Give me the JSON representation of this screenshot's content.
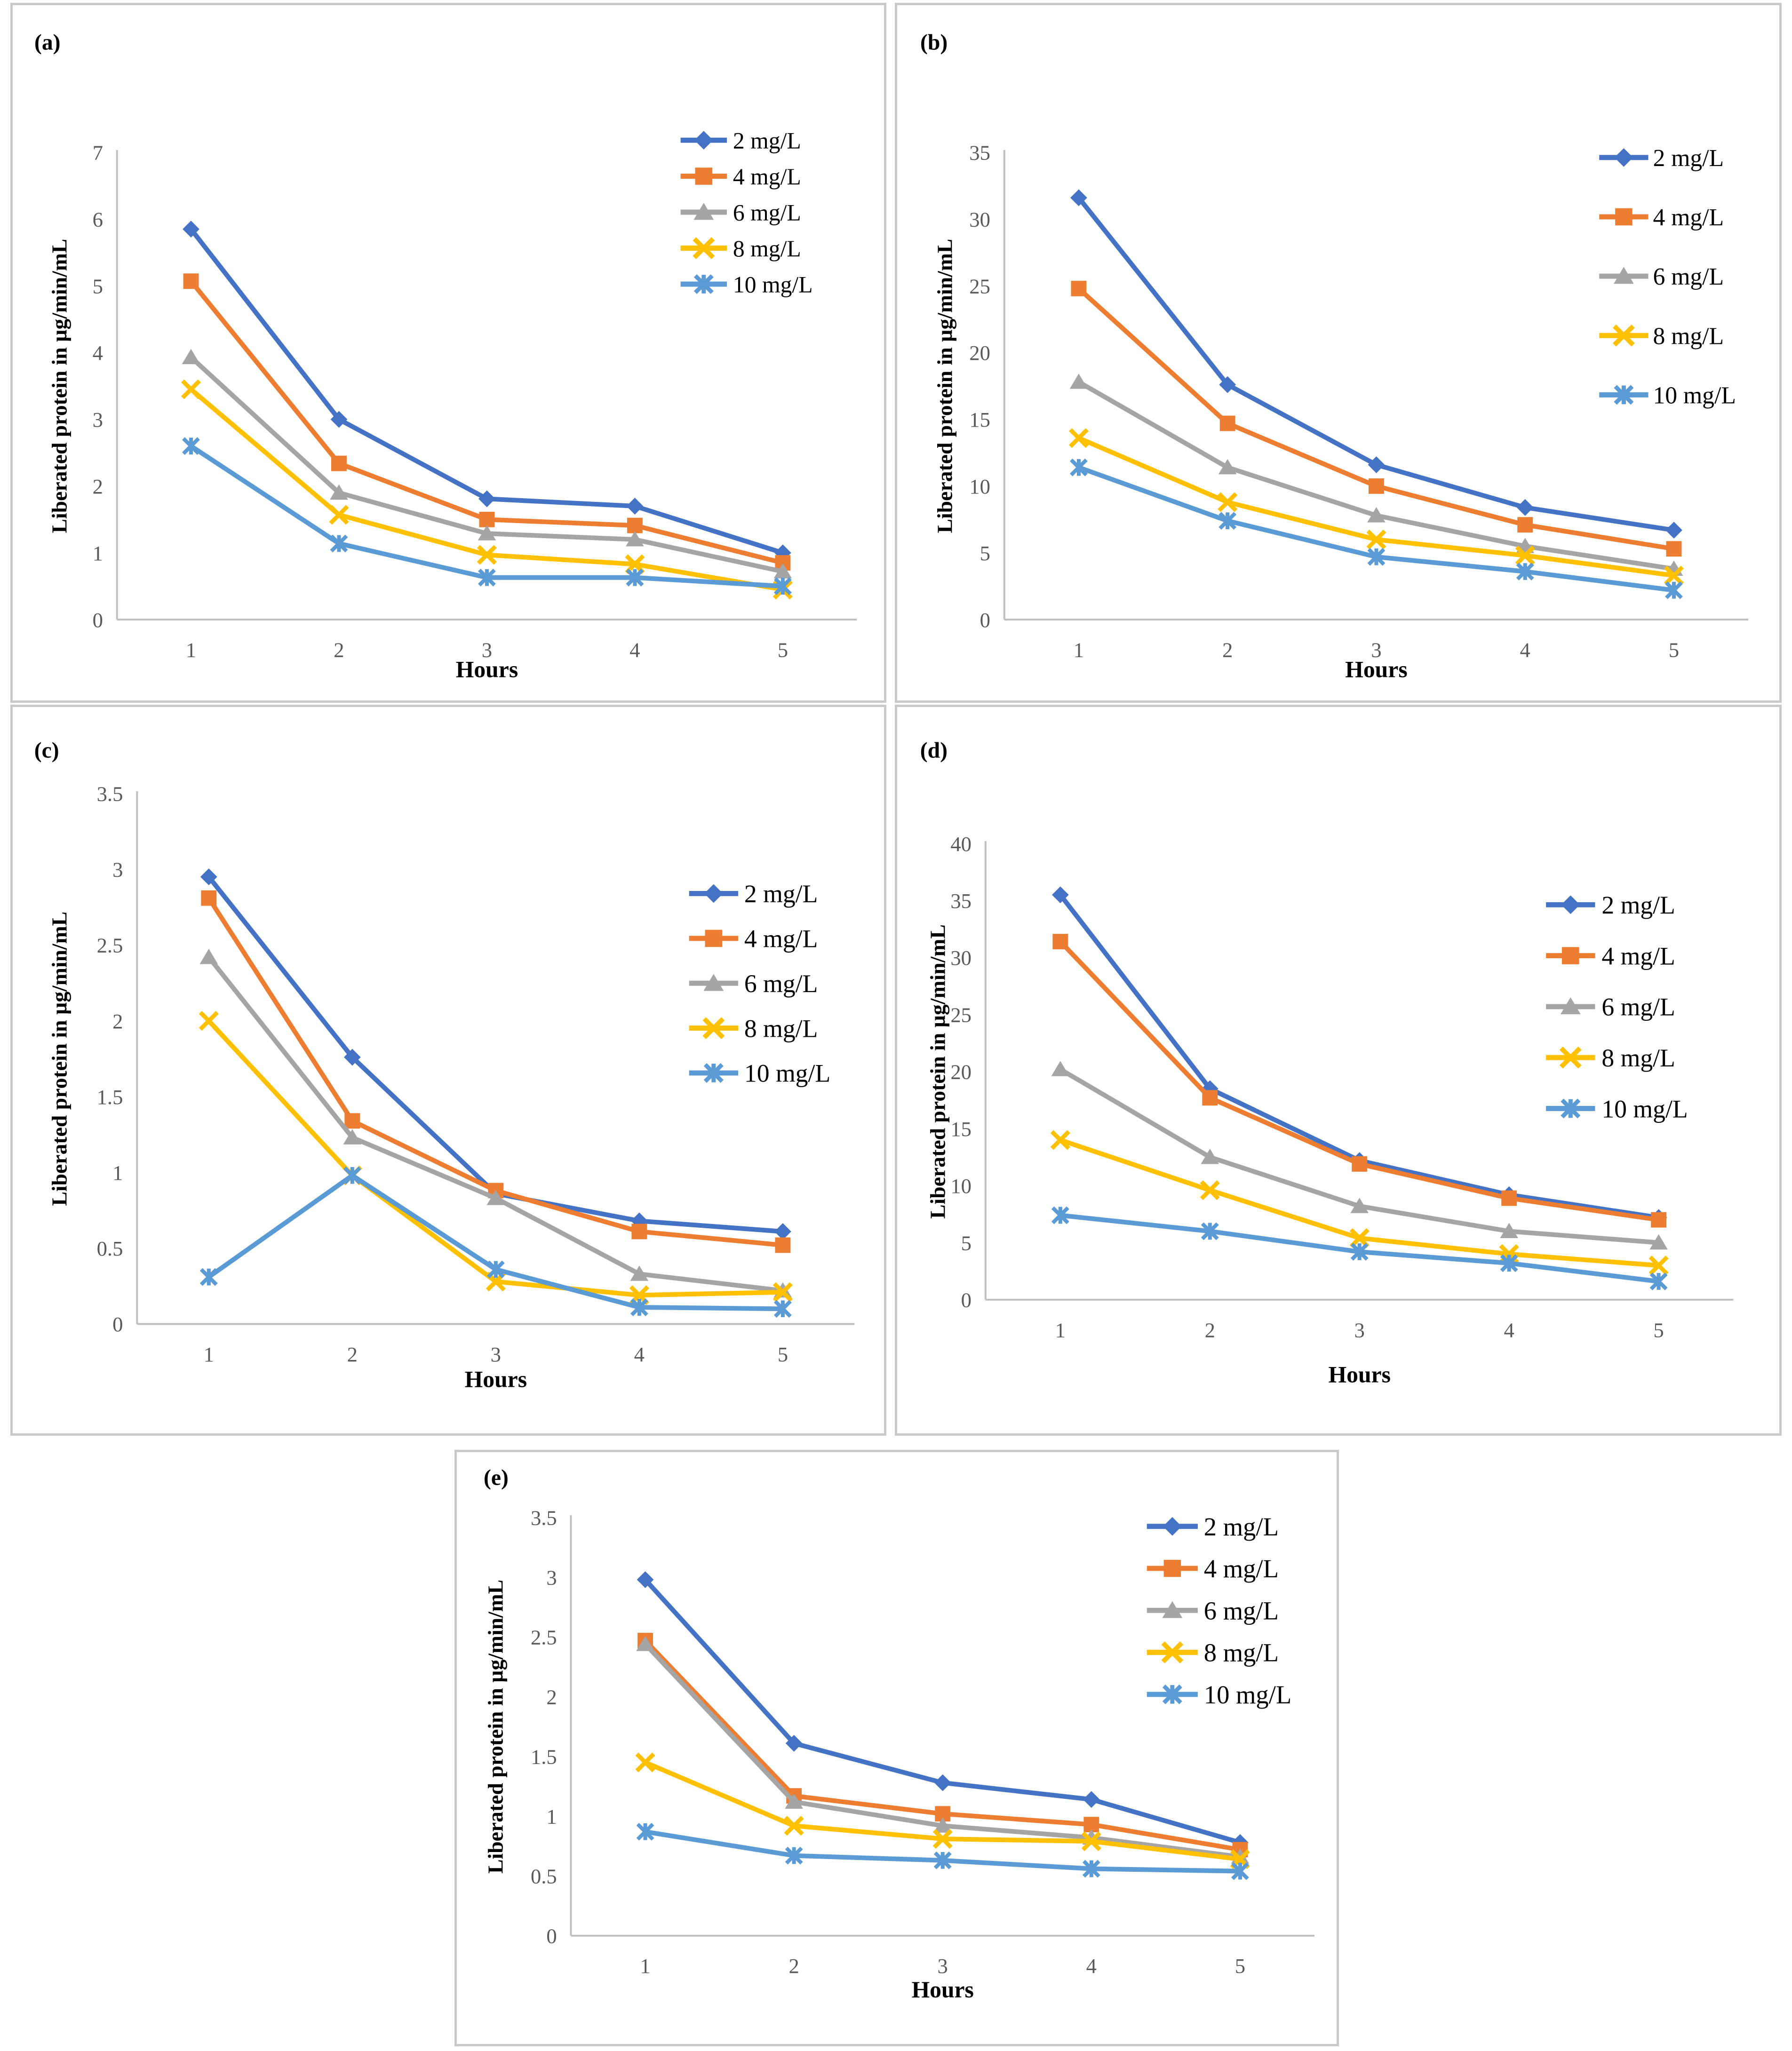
{
  "figure": {
    "xlabel": "Hours",
    "ylabel": "Liberated protein in µg/min/mL",
    "legend_entries": [
      "2  mg/L",
      "4 mg/L",
      "6 mg/L",
      "8 mg/L",
      "10 mg/L"
    ],
    "series_styles": [
      {
        "label": "2  mg/L",
        "color": "#4472C4",
        "marker": "diamond"
      },
      {
        "label": "4 mg/L",
        "color": "#ED7D31",
        "marker": "square"
      },
      {
        "label": "6 mg/L",
        "color": "#A5A5A5",
        "marker": "triangle"
      },
      {
        "label": "8 mg/L",
        "color": "#FFC000",
        "marker": "x"
      },
      {
        "label": "10 mg/L",
        "color": "#5B9BD5",
        "marker": "asterisk"
      }
    ],
    "axis_line_color": "#BFBFBF",
    "tick_label_color": "#595959",
    "text_color": "#000000",
    "panel_border_color": "#C9C9C9"
  },
  "chart_data": [
    {
      "id": "a",
      "panel_label": "(a)",
      "type": "line",
      "xlabel": "Hours",
      "ylabel": "Liberated protein in µg/min/mL",
      "x": [
        1,
        2,
        3,
        4,
        5
      ],
      "xtick_labels": [
        "1",
        "2",
        "3",
        "4",
        "5"
      ],
      "ylim": [
        0,
        7
      ],
      "ytick_labels": [
        "0",
        "1",
        "2",
        "3",
        "4",
        "5",
        "6",
        "7"
      ],
      "grid": false,
      "legend_position": "upper right",
      "series": [
        {
          "name": "2  mg/L",
          "values": [
            5.85,
            3.0,
            1.81,
            1.7,
            1.0
          ]
        },
        {
          "name": "4 mg/L",
          "values": [
            5.07,
            2.34,
            1.5,
            1.41,
            0.85
          ]
        },
        {
          "name": "6 mg/L",
          "values": [
            3.93,
            1.9,
            1.29,
            1.2,
            0.72
          ]
        },
        {
          "name": "8 mg/L",
          "values": [
            3.45,
            1.57,
            0.97,
            0.83,
            0.45
          ]
        },
        {
          "name": "10 mg/L",
          "values": [
            2.6,
            1.14,
            0.63,
            0.63,
            0.5
          ]
        }
      ]
    },
    {
      "id": "b",
      "panel_label": "(b)",
      "type": "line",
      "xlabel": "Hours",
      "ylabel": "Liberated protein in µg/min/mL",
      "x": [
        1,
        2,
        3,
        4,
        5
      ],
      "xtick_labels": [
        "1",
        "2",
        "3",
        "4",
        "5"
      ],
      "ylim": [
        0,
        35
      ],
      "ytick_labels": [
        "0",
        "5",
        "10",
        "15",
        "20",
        "25",
        "30",
        "35"
      ],
      "grid": false,
      "legend_position": "upper right",
      "series": [
        {
          "name": "2  mg/L",
          "values": [
            31.6,
            17.6,
            11.6,
            8.4,
            6.7
          ]
        },
        {
          "name": "4 mg/L",
          "values": [
            24.8,
            14.7,
            10.0,
            7.1,
            5.3
          ]
        },
        {
          "name": "6 mg/L",
          "values": [
            17.8,
            11.4,
            7.8,
            5.5,
            3.8
          ]
        },
        {
          "name": "8 mg/L",
          "values": [
            13.6,
            8.8,
            6.0,
            4.8,
            3.3
          ]
        },
        {
          "name": "10 mg/L",
          "values": [
            11.4,
            7.4,
            4.7,
            3.6,
            2.2
          ]
        }
      ]
    },
    {
      "id": "c",
      "panel_label": "(c)",
      "type": "line",
      "xlabel": "Hours",
      "ylabel": "Liberated protein in µg/min/mL",
      "x": [
        1,
        2,
        3,
        4,
        5
      ],
      "xtick_labels": [
        "1",
        "2",
        "3",
        "4",
        "5"
      ],
      "ylim": [
        0,
        3.5
      ],
      "ytick_labels": [
        "0",
        "0.5",
        "1",
        "1.5",
        "2",
        "2.5",
        "3",
        "3.5"
      ],
      "grid": false,
      "legend_position": "upper right",
      "series": [
        {
          "name": "2  mg/L",
          "values": [
            2.95,
            1.76,
            0.86,
            0.68,
            0.61
          ]
        },
        {
          "name": "4 mg/L",
          "values": [
            2.81,
            1.34,
            0.88,
            0.61,
            0.52
          ]
        },
        {
          "name": "6 mg/L",
          "values": [
            2.42,
            1.23,
            0.83,
            0.33,
            0.22
          ]
        },
        {
          "name": "8 mg/L",
          "values": [
            2.0,
            0.98,
            0.28,
            0.19,
            0.21
          ]
        },
        {
          "name": "10 mg/L",
          "values": [
            0.31,
            0.98,
            0.36,
            0.11,
            0.1
          ]
        }
      ]
    },
    {
      "id": "d",
      "panel_label": "(d)",
      "type": "line",
      "xlabel": "Hours",
      "ylabel": "Liberated protein in µg/min/mL",
      "x": [
        1,
        2,
        3,
        4,
        5
      ],
      "xtick_labels": [
        "1",
        "2",
        "3",
        "4",
        "5"
      ],
      "ylim": [
        0,
        40
      ],
      "ytick_labels": [
        "0",
        "5",
        "10",
        "15",
        "20",
        "25",
        "30",
        "35",
        "40"
      ],
      "grid": false,
      "legend_position": "upper right",
      "series": [
        {
          "name": "2  mg/L",
          "values": [
            35.5,
            18.5,
            12.2,
            9.2,
            7.2
          ]
        },
        {
          "name": "4 mg/L",
          "values": [
            31.4,
            17.7,
            11.9,
            8.9,
            7.0
          ]
        },
        {
          "name": "6 mg/L",
          "values": [
            20.2,
            12.5,
            8.2,
            6.0,
            5.0
          ]
        },
        {
          "name": "8 mg/L",
          "values": [
            14.0,
            9.6,
            5.4,
            4.0,
            3.0
          ]
        },
        {
          "name": "10 mg/L",
          "values": [
            7.4,
            6.0,
            4.2,
            3.2,
            1.6
          ]
        }
      ]
    },
    {
      "id": "e",
      "panel_label": "(e)",
      "type": "line",
      "xlabel": "Hours",
      "ylabel": "Liberated protein in µg/min/mL",
      "x": [
        1,
        2,
        3,
        4,
        5
      ],
      "xtick_labels": [
        "1",
        "2",
        "3",
        "4",
        "5"
      ],
      "ylim": [
        0,
        3.5
      ],
      "ytick_labels": [
        "0",
        "0.5",
        "1",
        "1.5",
        "2",
        "2.5",
        "3",
        "3.5"
      ],
      "grid": false,
      "legend_position": "upper right",
      "series": [
        {
          "name": "2  mg/L",
          "values": [
            2.98,
            1.61,
            1.28,
            1.14,
            0.78
          ]
        },
        {
          "name": "4 mg/L",
          "values": [
            2.47,
            1.17,
            1.02,
            0.93,
            0.72
          ]
        },
        {
          "name": "6 mg/L",
          "values": [
            2.44,
            1.12,
            0.92,
            0.82,
            0.66
          ]
        },
        {
          "name": "8 mg/L",
          "values": [
            1.45,
            0.92,
            0.81,
            0.79,
            0.64
          ]
        },
        {
          "name": "10 mg/L",
          "values": [
            0.87,
            0.67,
            0.63,
            0.56,
            0.54
          ]
        }
      ]
    }
  ]
}
